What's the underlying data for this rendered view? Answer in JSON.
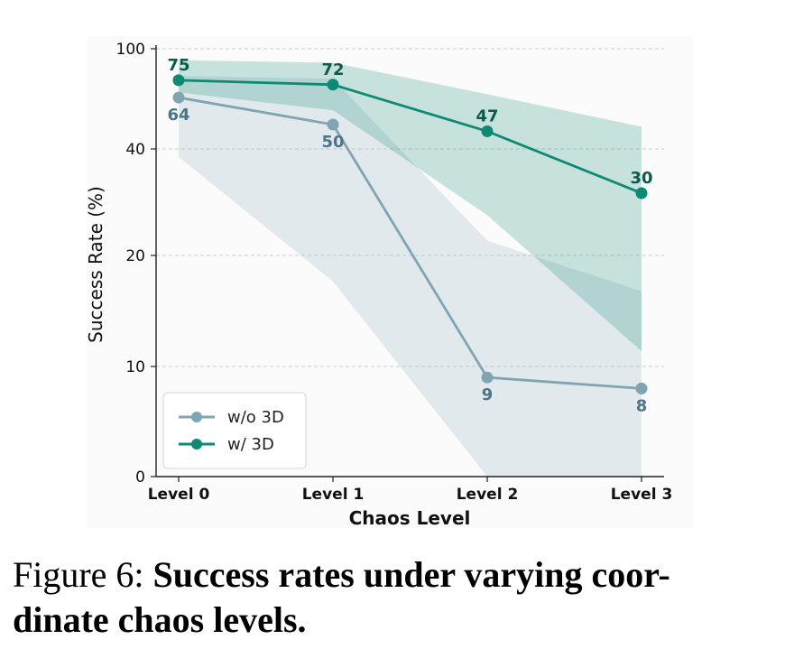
{
  "chart_data": {
    "type": "line",
    "categories": [
      "Level 0",
      "Level 1",
      "Level 2",
      "Level 3"
    ],
    "xlabel": "Chaos Level",
    "ylabel": "Success Rate (%)",
    "y_ticks": [
      "0",
      "10",
      "20",
      "40",
      "100"
    ],
    "grid": "horizontal dashed",
    "legend_position": "lower-left",
    "series": [
      {
        "name": "w/o 3D",
        "color": "#7fa5b2",
        "label_color": "#4d7588",
        "values": [
          64,
          50,
          9,
          8
        ],
        "band_lower": [
          38,
          17,
          0,
          0
        ],
        "band_upper": [
          78,
          76,
          22,
          16
        ]
      },
      {
        "name": "w/ 3D",
        "color": "#0e8a74",
        "label_color": "#0b5a4c",
        "values": [
          75,
          72,
          47,
          30
        ],
        "band_lower": [
          67,
          57,
          26,
          11
        ],
        "band_upper": [
          90,
          88,
          66,
          49
        ]
      }
    ]
  },
  "caption": {
    "prefix": "Figure 6: ",
    "line1_bold": "Success rates under varying coor-",
    "line2_bold": "dinate chaos levels."
  }
}
